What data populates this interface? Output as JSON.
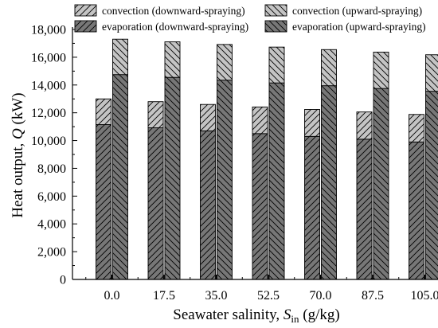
{
  "chart_data": {
    "type": "bar",
    "stacked": true,
    "categories": [
      "0.0",
      "17.5",
      "35.0",
      "52.5",
      "70.0",
      "87.5",
      "105.0"
    ],
    "series": [
      {
        "name": "evaporation (downward-spraying)",
        "group": "downward",
        "layer": "bottom",
        "fill": "#777777",
        "hatch": "forward",
        "values": [
          11150,
          10920,
          10700,
          10500,
          10300,
          10100,
          9900
        ]
      },
      {
        "name": "convection (downward-spraying)",
        "group": "downward",
        "layer": "top",
        "fill": "#c4c4c4",
        "hatch": "forward",
        "values": [
          1850,
          1880,
          1900,
          1920,
          1940,
          1960,
          1980
        ]
      },
      {
        "name": "evaporation (upward-spraying)",
        "group": "upward",
        "layer": "bottom",
        "fill": "#777777",
        "hatch": "back",
        "values": [
          14750,
          14550,
          14350,
          14150,
          13950,
          13750,
          13550
        ]
      },
      {
        "name": "convection (upward-spraying)",
        "group": "upward",
        "layer": "top",
        "fill": "#c4c4c4",
        "hatch": "back",
        "values": [
          2550,
          2560,
          2570,
          2580,
          2600,
          2620,
          2630
        ]
      }
    ],
    "ylim": [
      0,
      18000
    ],
    "yticks": [
      0,
      2000,
      4000,
      6000,
      8000,
      10000,
      12000,
      14000,
      16000,
      18000
    ],
    "ytick_labels": [
      "0",
      "2,000",
      "4,000",
      "6,000",
      "8,000",
      "10,000",
      "12,000",
      "14,000",
      "16,000",
      "18,000"
    ],
    "ylabel_main": "Heat output, ",
    "ylabel_italic": "Q",
    "ylabel_unit": " (kW)",
    "xlabel_main": "Seawater salinity, ",
    "xlabel_italic": "S",
    "xlabel_sub": "in",
    "xlabel_unit": " (g/kg)",
    "legend_order": [
      1,
      3,
      0,
      2
    ],
    "legend_placement": "top",
    "grid": false
  }
}
